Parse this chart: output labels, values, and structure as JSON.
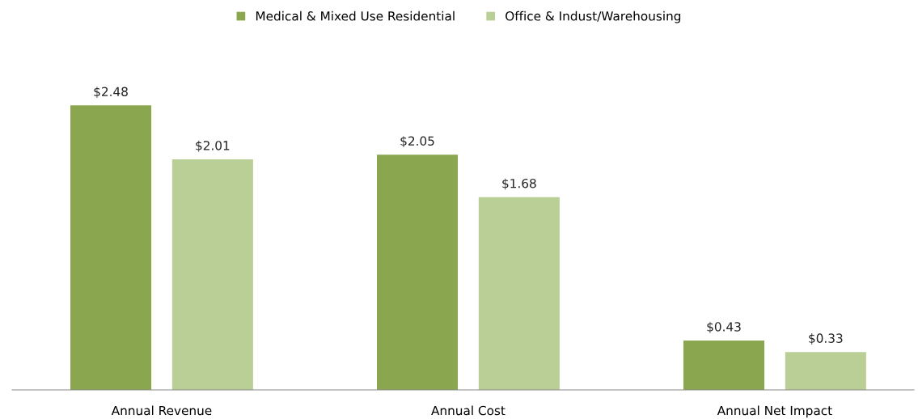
{
  "chart_data": {
    "type": "bar",
    "categories": [
      "Annual Revenue",
      "Annual Cost",
      "Annual Net Impact"
    ],
    "series": [
      {
        "name": "Medical & Mixed Use Residential",
        "color": "#8aa64e",
        "values": [
          2.48,
          2.05,
          0.43
        ],
        "value_labels": [
          "$2.48",
          "$2.05",
          "$0.43"
        ]
      },
      {
        "name": "Office & Indust/Warehousing",
        "color": "#bacf96",
        "values": [
          2.01,
          1.68,
          0.33
        ],
        "value_labels": [
          "$2.01",
          "$1.68",
          "$0.33"
        ]
      }
    ],
    "legend": "top",
    "grid": false
  }
}
